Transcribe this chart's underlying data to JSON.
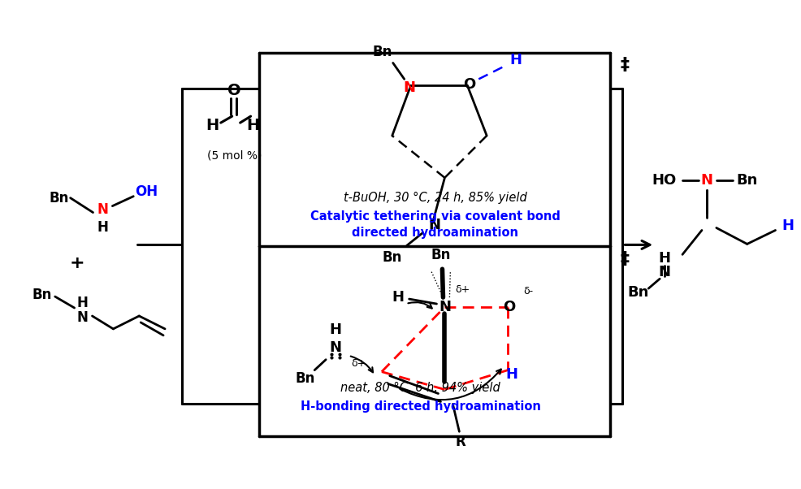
{
  "background": "#ffffff",
  "blue_color": "#0000ff",
  "red_color": "#ff0000",
  "black_color": "#000000",
  "condition_top": "t-BuOH, 30 °C, 24 h, 85% yield",
  "label_top_1": "Catalytic tethering via covalent bond",
  "label_top_2": "directed hydroamination",
  "condition_bot": "neat, 80 °C, 6 h, 94% yield",
  "label_bot": "H-bonding directed hydroamination",
  "catalyst_label": "(5 mol %)"
}
